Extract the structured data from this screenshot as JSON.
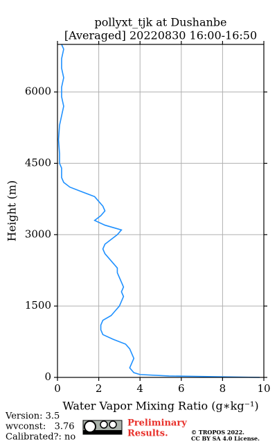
{
  "chart_data": {
    "type": "line",
    "title": "pollyxt_tjk at Dushanbe",
    "subtitle": "[Averaged] 20220830 16:00-16:50",
    "xlabel": "Water Vapor Mixing Ratio (g∗kg⁻¹)",
    "ylabel": "Height (m)",
    "color": "#1e90ff",
    "grid": true,
    "xlim": [
      0,
      10
    ],
    "xticks": [
      0,
      2,
      4,
      6,
      8,
      10
    ],
    "ylim": [
      0,
      7000
    ],
    "yticks": [
      0,
      1500,
      3000,
      4500,
      6000
    ],
    "heights": [
      0,
      30,
      60,
      100,
      200,
      300,
      400,
      500,
      600,
      700,
      800,
      900,
      1000,
      1100,
      1200,
      1300,
      1400,
      1500,
      1600,
      1700,
      1800,
      1900,
      2000,
      2100,
      2200,
      2300,
      2400,
      2500,
      2600,
      2700,
      2800,
      2900,
      3000,
      3100,
      3200,
      3300,
      3400,
      3500,
      3600,
      3700,
      3800,
      3900,
      4000,
      4100,
      4200,
      4300,
      4400,
      4500,
      4700,
      5000,
      5300,
      5500,
      5700,
      5900,
      6100,
      6300,
      6500,
      6700,
      6900,
      7000
    ],
    "values": [
      9.8,
      5.4,
      4.0,
      3.7,
      3.5,
      3.6,
      3.7,
      3.6,
      3.5,
      3.3,
      2.7,
      2.2,
      2.1,
      2.1,
      2.2,
      2.6,
      2.8,
      3.0,
      3.1,
      3.2,
      3.1,
      3.2,
      3.1,
      3.0,
      2.9,
      2.9,
      2.7,
      2.5,
      2.3,
      2.2,
      2.3,
      2.6,
      2.9,
      3.1,
      2.3,
      1.8,
      2.1,
      2.3,
      2.2,
      2.0,
      1.8,
      1.2,
      0.6,
      0.3,
      0.2,
      0.2,
      0.2,
      0.1,
      0.1,
      0.05,
      0.1,
      0.2,
      0.3,
      0.2,
      0.2,
      0.3,
      0.2,
      0.2,
      0.3,
      0.2
    ]
  },
  "footer": {
    "version": "Version: 3.5",
    "wvconst": "wvconst:   3.76",
    "calibrated": "Calibrated?: no",
    "preliminary": "Preliminary",
    "results": "Results.",
    "copyright": "© TROPOS 2022.",
    "license": "CC BY SA 4.0 License."
  }
}
